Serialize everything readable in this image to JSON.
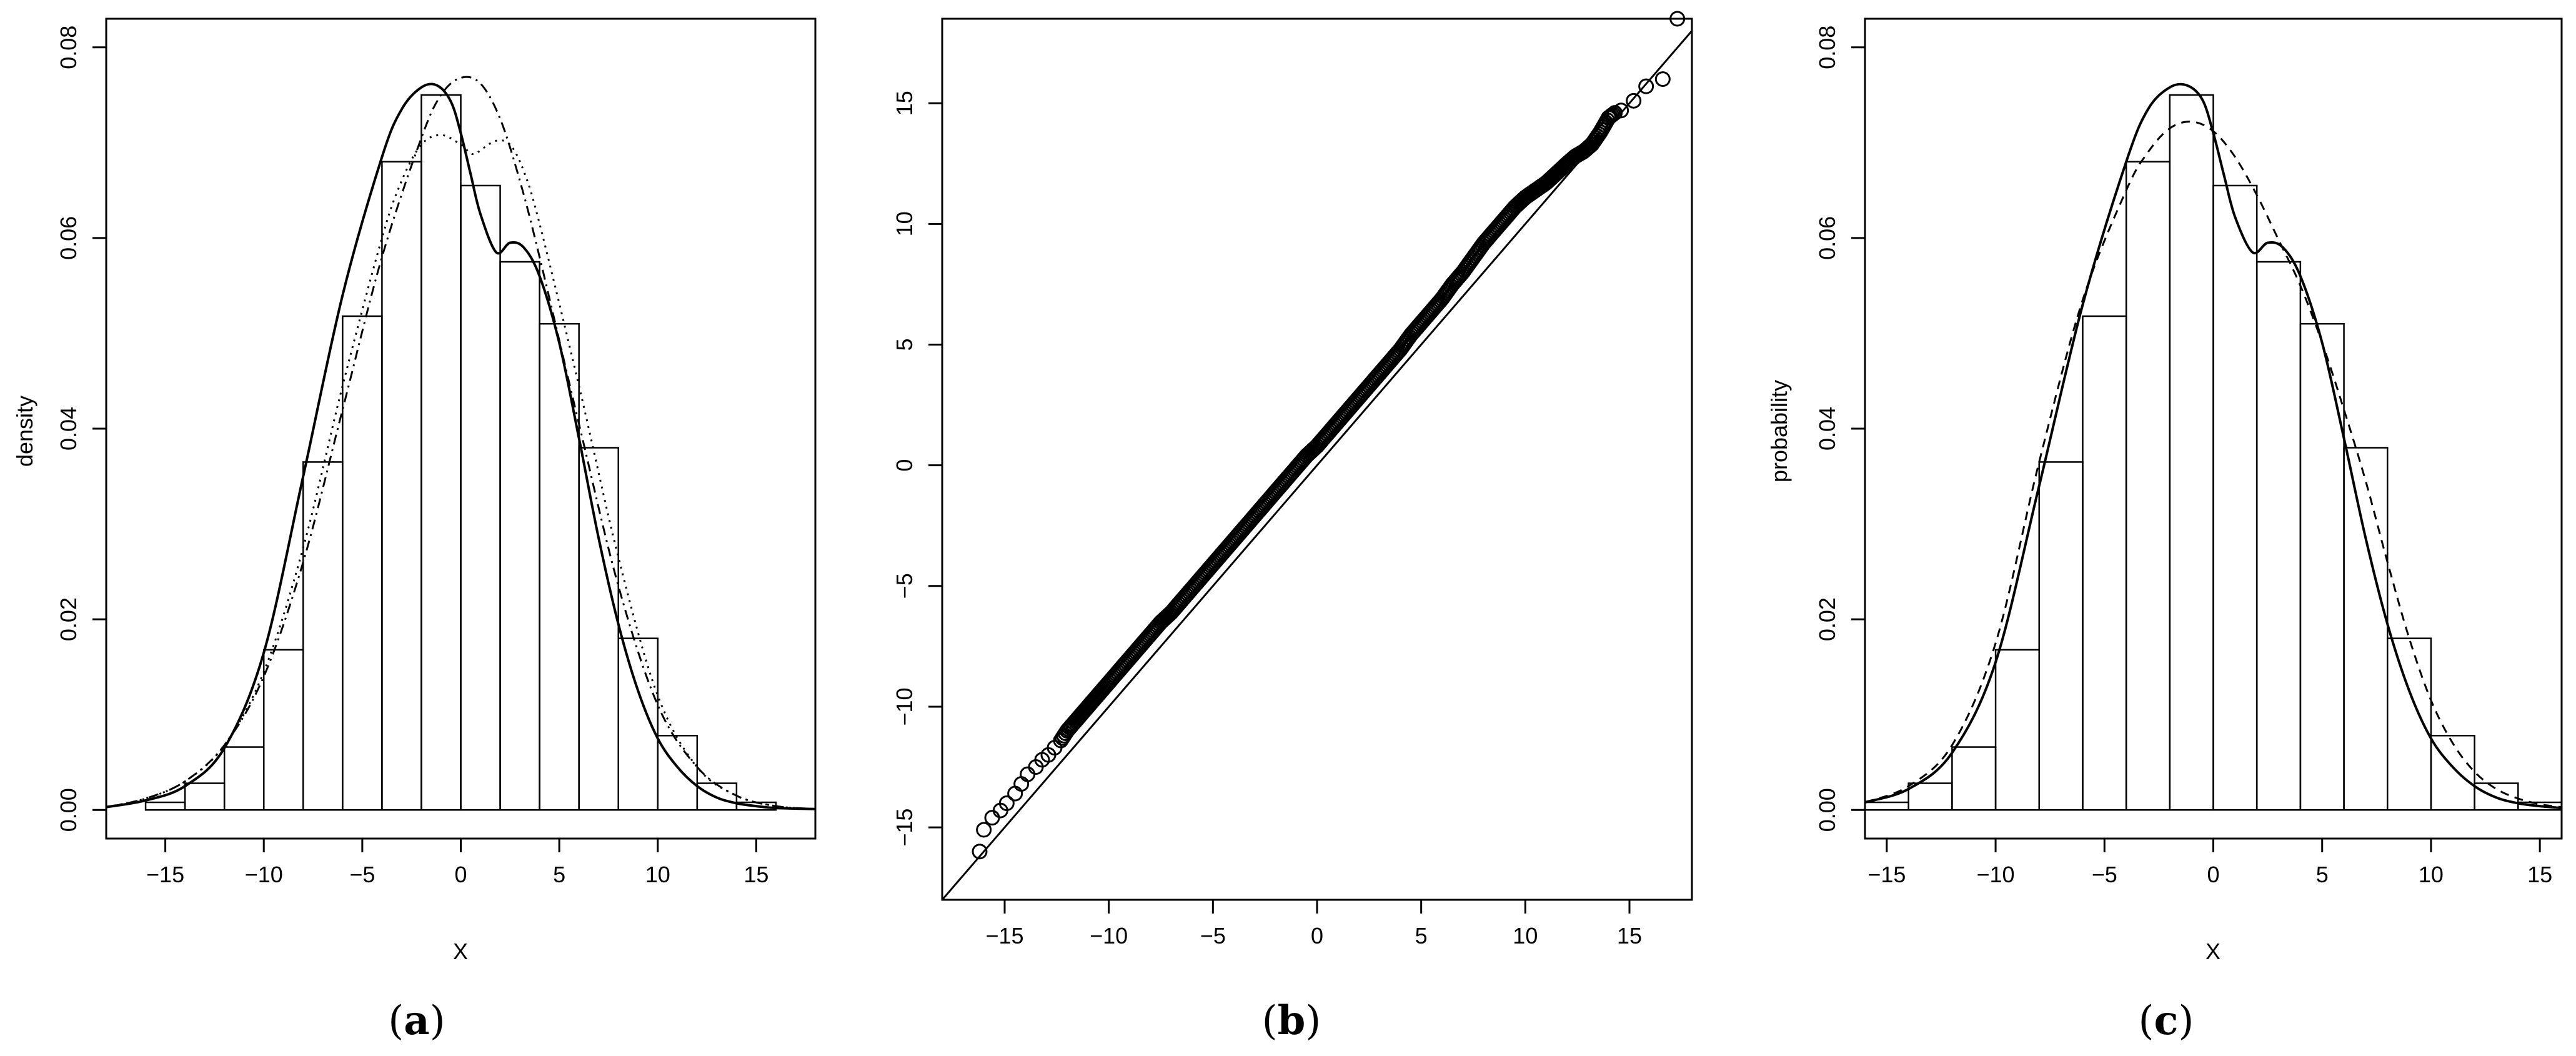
{
  "panels": [
    {
      "caption_open": "(",
      "caption_letter": "a",
      "caption_close": ")"
    },
    {
      "caption_open": "(",
      "caption_letter": "b",
      "caption_close": ")"
    },
    {
      "caption_open": "(",
      "caption_letter": "c",
      "caption_close": ")"
    }
  ],
  "chart_data": [
    {
      "type": "histogram",
      "xlabel": "X",
      "ylabel": "density",
      "xlim": [
        -18,
        18
      ],
      "ylim": [
        -0.003,
        0.083
      ],
      "x_ticks": [
        -15,
        -10,
        -5,
        0,
        5,
        10,
        15
      ],
      "y_ticks": [
        0.0,
        0.02,
        0.04,
        0.06,
        0.08
      ],
      "y_tick_labels": [
        "0.00",
        "0.02",
        "0.04",
        "0.06",
        "0.08"
      ],
      "grid": false,
      "bins": [
        {
          "x0": -16,
          "x1": -14,
          "value": 0.0008
        },
        {
          "x0": -14,
          "x1": -12,
          "value": 0.0028
        },
        {
          "x0": -12,
          "x1": -10,
          "value": 0.0066
        },
        {
          "x0": -10,
          "x1": -8,
          "value": 0.0168
        },
        {
          "x0": -8,
          "x1": -6,
          "value": 0.0365
        },
        {
          "x0": -6,
          "x1": -4,
          "value": 0.0518
        },
        {
          "x0": -4,
          "x1": -2,
          "value": 0.068
        },
        {
          "x0": -2,
          "x1": 0,
          "value": 0.075
        },
        {
          "x0": 0,
          "x1": 2,
          "value": 0.0655
        },
        {
          "x0": 2,
          "x1": 4,
          "value": 0.0575
        },
        {
          "x0": 4,
          "x1": 6,
          "value": 0.051
        },
        {
          "x0": 6,
          "x1": 8,
          "value": 0.038
        },
        {
          "x0": 8,
          "x1": 10,
          "value": 0.018
        },
        {
          "x0": 10,
          "x1": 12,
          "value": 0.0078
        },
        {
          "x0": 12,
          "x1": 14,
          "value": 0.0028
        },
        {
          "x0": 14,
          "x1": 16,
          "value": 0.0008
        }
      ],
      "series": [
        {
          "style": "solid",
          "x": [
            -18,
            -16,
            -14,
            -12,
            -10,
            -8,
            -6,
            -4,
            -3,
            -2,
            -1.2,
            -0.5,
            0,
            0.5,
            1,
            1.8,
            2.5,
            3.2,
            4,
            5,
            6,
            7,
            8,
            9,
            10,
            11,
            12,
            13,
            14,
            15,
            16,
            18
          ],
          "y": [
            0.0003,
            0.001,
            0.0025,
            0.0065,
            0.0165,
            0.035,
            0.054,
            0.0685,
            0.0735,
            0.0758,
            0.076,
            0.0743,
            0.071,
            0.0667,
            0.0625,
            0.0585,
            0.0595,
            0.059,
            0.056,
            0.049,
            0.039,
            0.0285,
            0.0195,
            0.0125,
            0.0075,
            0.0045,
            0.0025,
            0.0013,
            0.0007,
            0.0004,
            0.0002,
            0.0001
          ]
        },
        {
          "style": "dashdot",
          "x": [
            -18,
            -16,
            -14,
            -12,
            -10,
            -8,
            -6,
            -4,
            -2,
            -1,
            0,
            1,
            2,
            3,
            4,
            6,
            8,
            10,
            12,
            14,
            16,
            18
          ],
          "y": [
            0.0003,
            0.0012,
            0.003,
            0.0068,
            0.014,
            0.026,
            0.042,
            0.058,
            0.0705,
            0.075,
            0.0768,
            0.0762,
            0.0725,
            0.066,
            0.058,
            0.0405,
            0.0235,
            0.011,
            0.0045,
            0.0015,
            0.0004,
            0.0001
          ]
        },
        {
          "style": "dotted",
          "x": [
            -18,
            -16,
            -14,
            -12,
            -10,
            -8,
            -6,
            -4,
            -3,
            -2,
            -1,
            0,
            0.6,
            1.2,
            1.8,
            2.5,
            3.2,
            4,
            6,
            8,
            10,
            12,
            14,
            16,
            18
          ],
          "y": [
            0.0003,
            0.0012,
            0.003,
            0.0068,
            0.0145,
            0.0275,
            0.0445,
            0.06,
            0.066,
            0.0698,
            0.0708,
            0.0698,
            0.0688,
            0.0695,
            0.0702,
            0.0698,
            0.067,
            0.0615,
            0.0445,
            0.0265,
            0.012,
            0.0045,
            0.0015,
            0.0004,
            0.0001
          ]
        }
      ]
    },
    {
      "type": "scatter",
      "xlabel": "",
      "ylabel": "",
      "xlim": [
        -18,
        18
      ],
      "ylim": [
        -18,
        18.5
      ],
      "x_ticks": [
        -15,
        -10,
        -5,
        0,
        5,
        10,
        15
      ],
      "y_ticks": [
        -15,
        -10,
        -5,
        0,
        5,
        10,
        15
      ],
      "grid": false,
      "reference_line": {
        "x": [
          -18,
          18.5
        ],
        "y": [
          -18,
          18.5
        ]
      },
      "points": {
        "x": [
          -16.2,
          -16.0,
          -15.6,
          -15.2,
          -14.9,
          -14.5,
          -14.2,
          -13.9,
          -13.5,
          -13.2,
          -12.9,
          -12.6,
          -12.3,
          -12.0,
          -11.6,
          -11.2,
          -10.8,
          -10.4,
          -10.0,
          -9.5,
          -9.0,
          -8.5,
          -8.0,
          -7.5,
          -7.0,
          -6.5,
          -6.0,
          -5.5,
          -5.0,
          -4.5,
          -4.0,
          -3.5,
          -3.0,
          -2.5,
          -2.0,
          -1.5,
          -1.0,
          -0.5,
          0,
          0.5,
          1.0,
          1.5,
          2.0,
          2.5,
          3.0,
          3.5,
          4.0,
          4.5,
          5.0,
          5.5,
          6.0,
          6.5,
          7.0,
          7.5,
          8.0,
          8.5,
          9.0,
          9.5,
          10.0,
          10.5,
          11.0,
          11.5,
          12.0,
          12.4,
          12.8,
          13.2,
          13.6,
          14.0,
          14.3,
          14.6,
          15.2,
          15.8,
          16.6,
          17.3
        ],
        "y": [
          -16.0,
          -15.1,
          -14.6,
          -14.3,
          -14.0,
          -13.6,
          -13.2,
          -12.8,
          -12.5,
          -12.2,
          -12.0,
          -11.7,
          -11.4,
          -11.0,
          -10.6,
          -10.2,
          -9.8,
          -9.4,
          -9.0,
          -8.5,
          -8.0,
          -7.5,
          -7.0,
          -6.5,
          -6.1,
          -5.6,
          -5.1,
          -4.6,
          -4.1,
          -3.6,
          -3.1,
          -2.6,
          -2.1,
          -1.6,
          -1.1,
          -0.6,
          -0.1,
          0.4,
          0.8,
          1.3,
          1.8,
          2.3,
          2.8,
          3.3,
          3.8,
          4.3,
          4.8,
          5.4,
          5.9,
          6.4,
          6.9,
          7.5,
          8.0,
          8.6,
          9.2,
          9.7,
          10.2,
          10.7,
          11.1,
          11.4,
          11.7,
          12.1,
          12.5,
          12.8,
          13.0,
          13.3,
          13.8,
          14.4,
          14.6,
          14.7,
          15.1,
          15.7,
          16.0,
          18.5
        ]
      }
    },
    {
      "type": "histogram",
      "xlabel": "X",
      "ylabel": "probability",
      "xlim": [
        -16,
        16
      ],
      "ylim": [
        -0.003,
        0.083
      ],
      "x_ticks": [
        -15,
        -10,
        -5,
        0,
        5,
        10,
        15
      ],
      "y_ticks": [
        0.0,
        0.02,
        0.04,
        0.06,
        0.08
      ],
      "y_tick_labels": [
        "0.00",
        "0.02",
        "0.04",
        "0.06",
        "0.08"
      ],
      "grid": false,
      "bins": [
        {
          "x0": -16,
          "x1": -14,
          "value": 0.0008
        },
        {
          "x0": -14,
          "x1": -12,
          "value": 0.0028
        },
        {
          "x0": -12,
          "x1": -10,
          "value": 0.0066
        },
        {
          "x0": -10,
          "x1": -8,
          "value": 0.0168
        },
        {
          "x0": -8,
          "x1": -6,
          "value": 0.0365
        },
        {
          "x0": -6,
          "x1": -4,
          "value": 0.0518
        },
        {
          "x0": -4,
          "x1": -2,
          "value": 0.068
        },
        {
          "x0": -2,
          "x1": 0,
          "value": 0.075
        },
        {
          "x0": 0,
          "x1": 2,
          "value": 0.0655
        },
        {
          "x0": 2,
          "x1": 4,
          "value": 0.0575
        },
        {
          "x0": 4,
          "x1": 6,
          "value": 0.051
        },
        {
          "x0": 6,
          "x1": 8,
          "value": 0.038
        },
        {
          "x0": 8,
          "x1": 10,
          "value": 0.018
        },
        {
          "x0": 10,
          "x1": 12,
          "value": 0.0078
        },
        {
          "x0": 12,
          "x1": 14,
          "value": 0.0028
        },
        {
          "x0": 14,
          "x1": 16,
          "value": 0.0008
        }
      ],
      "series": [
        {
          "style": "solid",
          "x": [
            -16,
            -14,
            -12,
            -10,
            -8,
            -6,
            -4,
            -3,
            -2,
            -1.2,
            -0.5,
            0,
            0.5,
            1,
            1.8,
            2.5,
            3.2,
            4,
            5,
            6,
            7,
            8,
            9,
            10,
            11,
            12,
            13,
            14,
            15,
            16
          ],
          "y": [
            0.0008,
            0.0022,
            0.006,
            0.0155,
            0.034,
            0.053,
            0.068,
            0.0735,
            0.0758,
            0.076,
            0.0745,
            0.071,
            0.0665,
            0.0622,
            0.0585,
            0.0595,
            0.059,
            0.056,
            0.049,
            0.039,
            0.0285,
            0.0195,
            0.0125,
            0.0075,
            0.0045,
            0.0025,
            0.0013,
            0.0007,
            0.0004,
            0.0002
          ]
        },
        {
          "style": "dashed",
          "x": [
            -16,
            -14,
            -12,
            -10,
            -8,
            -6,
            -4,
            -3,
            -2,
            -1,
            0,
            1,
            2,
            3,
            4,
            5,
            6,
            7,
            8,
            9,
            10,
            11,
            12,
            13,
            14,
            15,
            16
          ],
          "y": [
            0.0008,
            0.0025,
            0.0068,
            0.0175,
            0.0365,
            0.0535,
            0.065,
            0.069,
            0.0715,
            0.0722,
            0.0712,
            0.0685,
            0.0645,
            0.0598,
            0.055,
            0.049,
            0.042,
            0.0345,
            0.026,
            0.018,
            0.0115,
            0.007,
            0.004,
            0.0022,
            0.0012,
            0.0006,
            0.0003
          ]
        }
      ]
    }
  ]
}
